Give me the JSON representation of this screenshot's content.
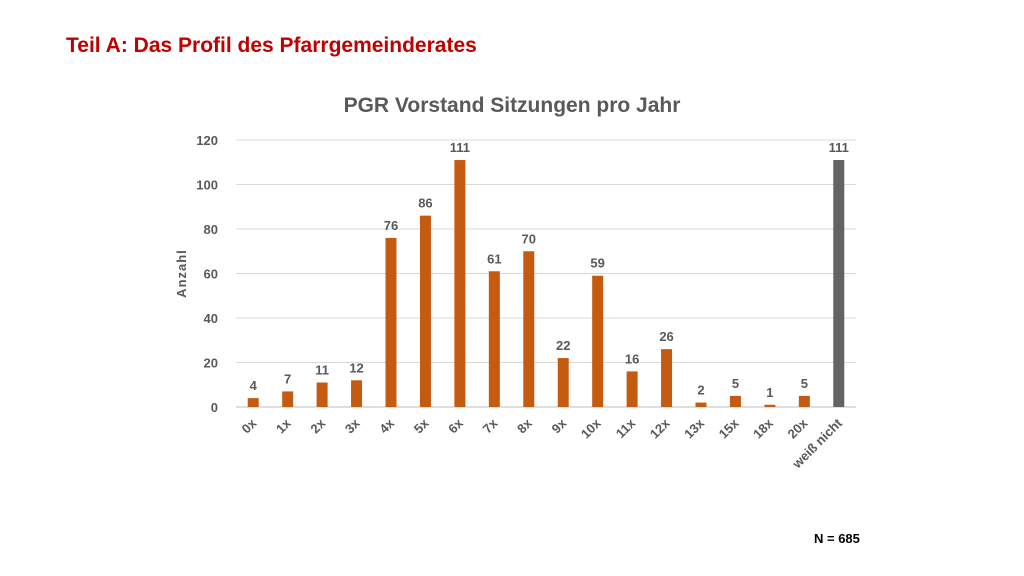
{
  "slide": {
    "title": "Teil A: Das Profil des Pfarrgemeinderates",
    "footnote": "N = 685"
  },
  "colors": {
    "title": "#c00000",
    "bar": "#c55a11",
    "bar_highlight": "#636363",
    "text": "#595959",
    "grid": "#d9d9d9"
  },
  "chart_data": {
    "type": "bar",
    "title": "PGR Vorstand Sitzungen pro Jahr",
    "xlabel": "",
    "ylabel": "Anzahl",
    "ylim": [
      0,
      120
    ],
    "yticks": [
      0,
      20,
      40,
      60,
      80,
      100,
      120
    ],
    "grid": true,
    "legend": "none",
    "categories": [
      "0x",
      "1x",
      "2x",
      "3x",
      "4x",
      "5x",
      "6x",
      "7x",
      "8x",
      "9x",
      "10x",
      "11x",
      "12x",
      "13x",
      "15x",
      "18x",
      "20x",
      "weiß nicht"
    ],
    "values": [
      4,
      7,
      11,
      12,
      76,
      86,
      111,
      61,
      70,
      22,
      59,
      16,
      26,
      2,
      5,
      1,
      5,
      111
    ],
    "data_labels": [
      "4",
      "7",
      "11",
      "12",
      "76",
      "86",
      "111",
      "61",
      "70",
      "22",
      "59",
      "16",
      "26",
      "2",
      "5",
      "1",
      "5",
      "111"
    ],
    "highlight_category": "weiß nicht"
  }
}
